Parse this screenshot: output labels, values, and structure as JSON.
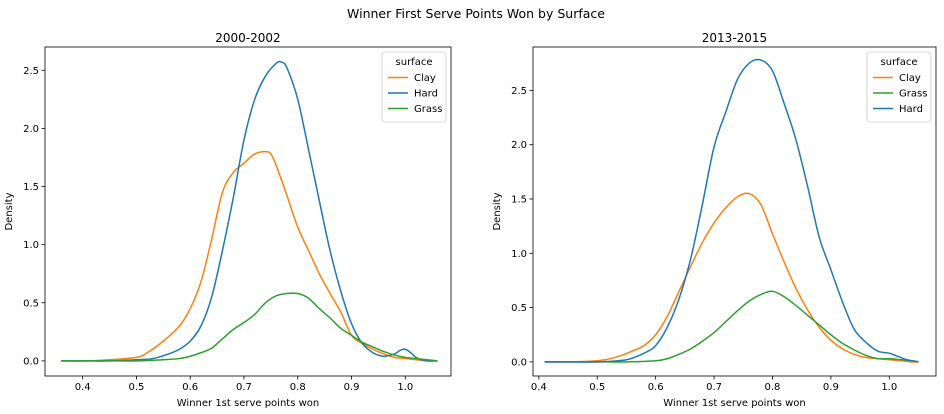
{
  "figure": {
    "suptitle": "Winner First Serve Points Won by Surface"
  },
  "colors": {
    "blue": "#1f77b4",
    "orange": "#ff7f0e",
    "green": "#2ca02c"
  },
  "chart_data": [
    {
      "type": "line",
      "title": "2000-2002",
      "xlabel": "Winner 1st serve points won",
      "ylabel": "Density",
      "xlim": [
        0.33,
        1.085
      ],
      "ylim": [
        -0.13,
        2.7
      ],
      "xticks": [
        0.4,
        0.5,
        0.6,
        0.7,
        0.8,
        0.9,
        1.0
      ],
      "yticks": [
        0.0,
        0.5,
        1.0,
        1.5,
        2.0,
        2.5
      ],
      "legend": {
        "title": "surface",
        "position": "top-right"
      },
      "grid": false,
      "series": [
        {
          "name": "Clay",
          "color": "#ff7f0e",
          "x": [
            0.36,
            0.4,
            0.45,
            0.5,
            0.52,
            0.55,
            0.58,
            0.6,
            0.62,
            0.64,
            0.66,
            0.68,
            0.7,
            0.72,
            0.74,
            0.75,
            0.76,
            0.78,
            0.8,
            0.82,
            0.84,
            0.86,
            0.88,
            0.9,
            0.92,
            0.94,
            0.96,
            0.98,
            1.0,
            1.02,
            1.04,
            1.06
          ],
          "y": [
            0.0,
            0.0,
            0.01,
            0.03,
            0.07,
            0.17,
            0.3,
            0.45,
            0.68,
            1.05,
            1.45,
            1.62,
            1.7,
            1.78,
            1.8,
            1.78,
            1.68,
            1.42,
            1.15,
            0.95,
            0.75,
            0.58,
            0.42,
            0.22,
            0.15,
            0.1,
            0.06,
            0.03,
            0.02,
            0.01,
            0.0,
            0.0
          ]
        },
        {
          "name": "Hard",
          "color": "#1f77b4",
          "x": [
            0.36,
            0.4,
            0.45,
            0.5,
            0.53,
            0.56,
            0.58,
            0.6,
            0.62,
            0.64,
            0.66,
            0.68,
            0.7,
            0.72,
            0.74,
            0.76,
            0.77,
            0.78,
            0.8,
            0.82,
            0.84,
            0.86,
            0.88,
            0.9,
            0.92,
            0.94,
            0.96,
            0.98,
            0.99,
            1.0,
            1.01,
            1.02,
            1.03,
            1.04,
            1.06
          ],
          "y": [
            0.0,
            0.0,
            0.0,
            0.01,
            0.02,
            0.06,
            0.1,
            0.17,
            0.3,
            0.55,
            0.95,
            1.4,
            1.9,
            2.25,
            2.45,
            2.56,
            2.57,
            2.52,
            2.25,
            1.82,
            1.38,
            0.95,
            0.6,
            0.32,
            0.15,
            0.07,
            0.04,
            0.06,
            0.09,
            0.1,
            0.07,
            0.03,
            0.01,
            0.0,
            0.0
          ]
        },
        {
          "name": "Grass",
          "color": "#2ca02c",
          "x": [
            0.36,
            0.4,
            0.45,
            0.5,
            0.55,
            0.58,
            0.6,
            0.62,
            0.64,
            0.66,
            0.68,
            0.7,
            0.72,
            0.74,
            0.76,
            0.78,
            0.8,
            0.82,
            0.84,
            0.86,
            0.88,
            0.9,
            0.92,
            0.94,
            0.96,
            0.98,
            1.0,
            1.02,
            1.04,
            1.06
          ],
          "y": [
            0.0,
            0.0,
            0.0,
            0.0,
            0.01,
            0.02,
            0.04,
            0.07,
            0.11,
            0.19,
            0.27,
            0.33,
            0.4,
            0.5,
            0.56,
            0.58,
            0.58,
            0.54,
            0.45,
            0.37,
            0.28,
            0.22,
            0.16,
            0.12,
            0.08,
            0.05,
            0.03,
            0.02,
            0.01,
            0.0
          ]
        }
      ]
    },
    {
      "type": "line",
      "title": "2013-2015",
      "xlabel": "Winner 1st serve points won",
      "ylabel": "Density",
      "xlim": [
        0.39,
        1.08
      ],
      "ylim": [
        -0.13,
        2.9
      ],
      "xticks": [
        0.4,
        0.5,
        0.6,
        0.7,
        0.8,
        0.9,
        1.0
      ],
      "yticks": [
        0.0,
        0.5,
        1.0,
        1.5,
        2.0,
        2.5
      ],
      "legend": {
        "title": "surface",
        "position": "top-right"
      },
      "grid": false,
      "series": [
        {
          "name": "Clay",
          "color": "#ff7f0e",
          "x": [
            0.41,
            0.45,
            0.5,
            0.53,
            0.56,
            0.58,
            0.6,
            0.62,
            0.64,
            0.66,
            0.68,
            0.7,
            0.72,
            0.74,
            0.76,
            0.78,
            0.8,
            0.82,
            0.84,
            0.86,
            0.88,
            0.9,
            0.92,
            0.94,
            0.96,
            0.98,
            1.0,
            1.02,
            1.04,
            1.05
          ],
          "y": [
            0.0,
            0.0,
            0.01,
            0.04,
            0.1,
            0.15,
            0.25,
            0.42,
            0.65,
            0.88,
            1.1,
            1.28,
            1.42,
            1.52,
            1.55,
            1.45,
            1.18,
            0.92,
            0.68,
            0.48,
            0.32,
            0.2,
            0.12,
            0.07,
            0.04,
            0.03,
            0.02,
            0.01,
            0.0,
            0.0
          ]
        },
        {
          "name": "Grass",
          "color": "#2ca02c",
          "x": [
            0.41,
            0.45,
            0.5,
            0.55,
            0.6,
            0.62,
            0.64,
            0.66,
            0.68,
            0.7,
            0.72,
            0.74,
            0.76,
            0.78,
            0.8,
            0.82,
            0.84,
            0.86,
            0.88,
            0.9,
            0.92,
            0.94,
            0.96,
            0.98,
            1.0,
            1.02,
            1.04,
            1.05
          ],
          "y": [
            0.0,
            0.0,
            0.0,
            0.0,
            0.01,
            0.03,
            0.07,
            0.12,
            0.19,
            0.27,
            0.37,
            0.47,
            0.56,
            0.62,
            0.65,
            0.6,
            0.52,
            0.43,
            0.34,
            0.25,
            0.17,
            0.11,
            0.06,
            0.03,
            0.03,
            0.02,
            0.01,
            0.0
          ]
        },
        {
          "name": "Hard",
          "color": "#1f77b4",
          "x": [
            0.41,
            0.45,
            0.5,
            0.55,
            0.58,
            0.6,
            0.62,
            0.64,
            0.66,
            0.68,
            0.7,
            0.72,
            0.74,
            0.76,
            0.78,
            0.8,
            0.82,
            0.84,
            0.86,
            0.88,
            0.9,
            0.92,
            0.94,
            0.96,
            0.98,
            1.0,
            1.01,
            1.02,
            1.03,
            1.05
          ],
          "y": [
            0.0,
            0.0,
            0.0,
            0.02,
            0.08,
            0.15,
            0.32,
            0.58,
            0.95,
            1.45,
            1.98,
            2.3,
            2.6,
            2.75,
            2.78,
            2.68,
            2.38,
            2.05,
            1.62,
            1.15,
            0.85,
            0.55,
            0.3,
            0.18,
            0.1,
            0.08,
            0.06,
            0.04,
            0.02,
            0.0
          ]
        }
      ]
    }
  ]
}
